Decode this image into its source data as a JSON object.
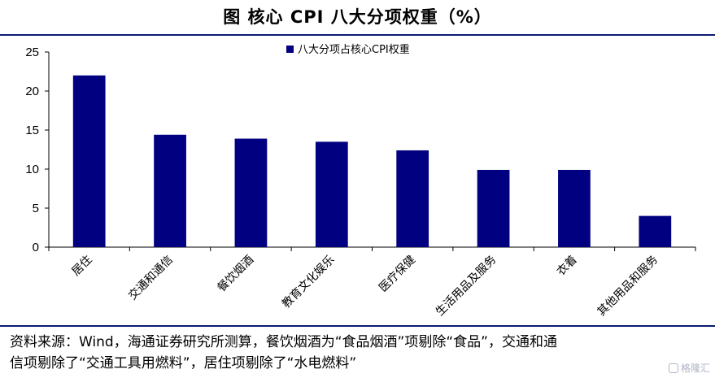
{
  "header": {
    "title": "图  核心 CPI 八大分项权重（%）"
  },
  "chart_data": {
    "type": "bar",
    "categories": [
      "居住",
      "交通和通信",
      "餐饮烟酒",
      "教育文化娱乐",
      "医疗保健",
      "生活用品及服务",
      "衣着",
      "其他用品和服务"
    ],
    "series": [
      {
        "name": "八大分项占核心CPI权重",
        "values": [
          22.0,
          14.4,
          13.9,
          13.5,
          12.4,
          9.9,
          9.9,
          4.0
        ],
        "color": "#000080"
      }
    ],
    "yticks": [
      "0",
      "5",
      "10",
      "15",
      "20",
      "25"
    ],
    "ylim": [
      0,
      25
    ],
    "legend_position": "top-center",
    "grid": false
  },
  "footer": {
    "source_line1": "资料来源：Wind，海通证券研究所测算，餐饮烟酒为“食品烟酒”项剔除“食品”，交通和通",
    "source_line2": "信项剔除了“交通工具用燃料”，居住项剔除了“水电燃料”",
    "watermark": "格隆汇"
  }
}
